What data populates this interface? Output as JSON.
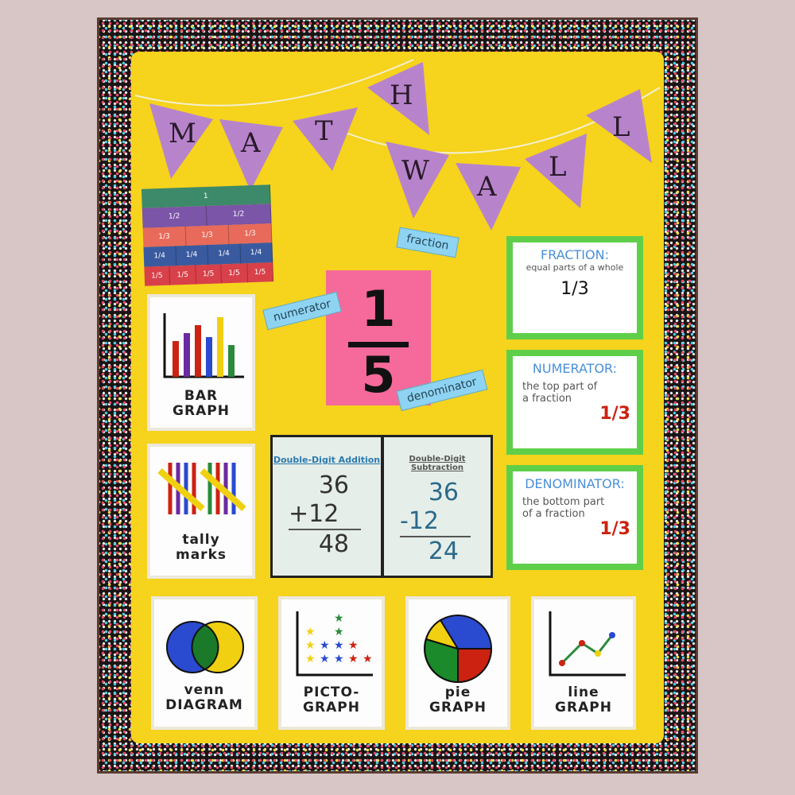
{
  "banner": {
    "letters_line1": [
      "M",
      "A",
      "T",
      "H"
    ],
    "letters_line2": [
      "W",
      "A",
      "L",
      "L"
    ]
  },
  "fraction_strips": {
    "rows": [
      [
        "1"
      ],
      [
        "1/2",
        "1/2"
      ],
      [
        "1/3",
        "1/3",
        "1/3"
      ],
      [
        "1/4",
        "1/4",
        "1/4",
        "1/4"
      ],
      [
        "1/5",
        "1/5",
        "1/5",
        "1/5",
        "1/5"
      ]
    ],
    "colors": [
      "#3c8a6a",
      "#7a55a8",
      "#e86a5a",
      "#3a5aa0",
      "#d8404a"
    ]
  },
  "center_fraction": {
    "numerator": "1",
    "denominator": "5",
    "labels": {
      "fraction": "fraction",
      "numerator": "numerator",
      "denominator": "denominator"
    }
  },
  "graph_cards": {
    "bar": "BAR GRAPH",
    "tally": "tally marks",
    "venn": "venn DIAGRAM",
    "picto": "PICTO- GRAPH",
    "pie": "pie GRAPH",
    "line": "line GRAPH"
  },
  "vocab_cards": [
    {
      "title": "FRACTION:",
      "text": "equal parts of a whole",
      "value": "1/3"
    },
    {
      "title": "NUMERATOR:",
      "text": "the top part of a fraction",
      "value": "1/3"
    },
    {
      "title": "DENOMINATOR:",
      "text": "the bottom part of a fraction",
      "value": "1/3"
    }
  ],
  "addition": {
    "title": "Double-Digit Addition",
    "top": "36",
    "op": "+12",
    "result": "48"
  },
  "subtraction": {
    "title": "Double-Digit Subtraction",
    "top": "36",
    "op": "-12",
    "result": "24"
  },
  "colors": {
    "board_yellow": "#f6d31c",
    "flag_purple": "#b784cc",
    "vocab_green": "#5fcf4a",
    "fraction_pink": "#f56a9a"
  }
}
